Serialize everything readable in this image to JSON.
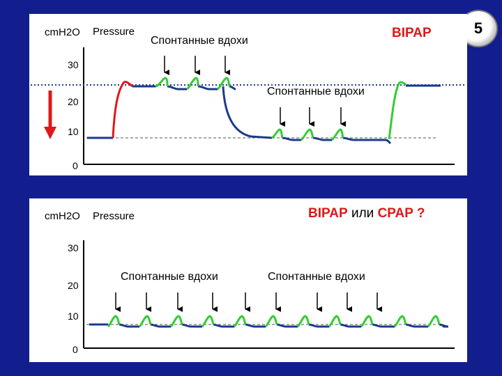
{
  "slide_number": "5",
  "top_chart": {
    "unit": "cmH2O",
    "title_left": "Pressure",
    "title_right": "BIPAP",
    "note_top": "Спонтанные вдохи",
    "note_middle": "Спонтанные вдохи",
    "ticks": [
      "30",
      "20",
      "10",
      "0"
    ]
  },
  "bottom_chart": {
    "unit": "cmH2O",
    "title_left": "Pressure",
    "title_part1": "BIPAP",
    "title_part2": "или",
    "title_part3": "CPAP ?",
    "note_left": "Спонтанные вдохи",
    "note_right": "Спонтанные вдохи",
    "ticks": [
      "30",
      "20",
      "10",
      "0"
    ]
  },
  "colors": {
    "background": "#131e8e",
    "trace": "#1a3a8c",
    "spontaneous": "#33cc33",
    "rise": "#e01818",
    "reference": "#1a3a8c"
  }
}
